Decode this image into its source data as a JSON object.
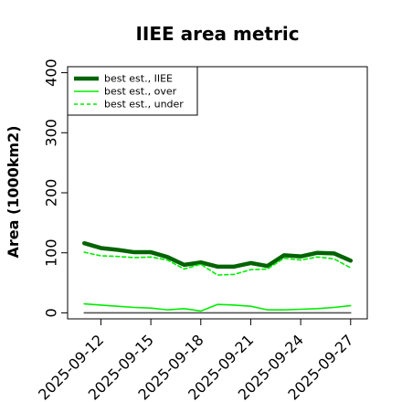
{
  "chart_data": {
    "type": "line",
    "title": "IIEE area metric",
    "xlabel": "",
    "ylabel": "Area (1000km2)",
    "x": [
      "2025-09-11",
      "2025-09-12",
      "2025-09-13",
      "2025-09-14",
      "2025-09-15",
      "2025-09-16",
      "2025-09-17",
      "2025-09-18",
      "2025-09-19",
      "2025-09-20",
      "2025-09-21",
      "2025-09-22",
      "2025-09-23",
      "2025-09-24",
      "2025-09-25",
      "2025-09-26",
      "2025-09-27"
    ],
    "xticks": [
      "2025-09-12",
      "2025-09-15",
      "2025-09-18",
      "2025-09-21",
      "2025-09-24",
      "2025-09-27"
    ],
    "yticks": [
      0,
      100,
      200,
      300,
      400
    ],
    "ylim": [
      -10,
      410
    ],
    "xlim": [
      "2025-09-10",
      "2025-09-28"
    ],
    "grid": false,
    "legend_position": "top-left",
    "series": [
      {
        "name": "best est., IIEE",
        "color": "#006400",
        "style": "solid",
        "width": "thick",
        "values": [
          116,
          108,
          105,
          101,
          101,
          93,
          80,
          84,
          77,
          77,
          83,
          78,
          96,
          94,
          100,
          99,
          87
        ]
      },
      {
        "name": "best est., over",
        "color": "#00ee00",
        "style": "solid",
        "width": "thin",
        "values": [
          15,
          13,
          11,
          9,
          8,
          5,
          7,
          3,
          14,
          13,
          11,
          5,
          5,
          6,
          7,
          9,
          12
        ]
      },
      {
        "name": "best est., under",
        "color": "#00ee00",
        "style": "dashed",
        "width": "thin",
        "values": [
          101,
          95,
          94,
          92,
          93,
          88,
          73,
          81,
          63,
          64,
          72,
          73,
          91,
          88,
          93,
          90,
          75
        ]
      },
      {
        "name": "",
        "color": "#555555",
        "style": "solid",
        "width": "thin",
        "values": [
          0,
          0,
          0,
          0,
          0,
          0,
          0,
          0,
          0,
          0,
          0,
          0,
          0,
          0,
          0,
          0,
          0
        ]
      }
    ]
  }
}
